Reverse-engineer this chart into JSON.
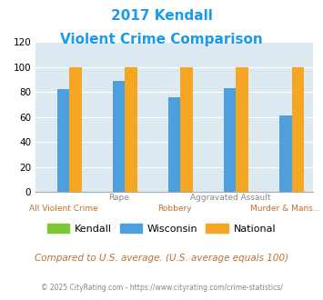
{
  "title_line1": "2017 Kendall",
  "title_line2": "Violent Crime Comparison",
  "title_color": "#1a9aee",
  "x_labels_top": [
    "",
    "Rape",
    "",
    "Aggravated Assault",
    ""
  ],
  "x_labels_bottom": [
    "All Violent Crime",
    "",
    "Robbery",
    "",
    "Murder & Mans..."
  ],
  "groups": [
    {
      "label": "All Violent Crime",
      "kendall": 0,
      "wisconsin": 82,
      "national": 100
    },
    {
      "label": "Rape",
      "kendall": 0,
      "wisconsin": 89,
      "national": 100
    },
    {
      "label": "Robbery",
      "kendall": 0,
      "wisconsin": 76,
      "national": 100
    },
    {
      "label": "Aggravated Assault",
      "kendall": 0,
      "wisconsin": 83,
      "national": 100
    },
    {
      "label": "Murder & Mans...",
      "kendall": 0,
      "wisconsin": 61,
      "national": 100
    }
  ],
  "kendall_color": "#7dc832",
  "wisconsin_color": "#4d9fde",
  "national_color": "#f5a623",
  "ylim": [
    0,
    120
  ],
  "yticks": [
    0,
    20,
    40,
    60,
    80,
    100,
    120
  ],
  "plot_bg": "#dce9f0",
  "footer_text": "Compared to U.S. average. (U.S. average equals 100)",
  "footer_color": "#c07030",
  "copyright_text": "© 2025 CityRating.com - https://www.cityrating.com/crime-statistics/",
  "copyright_color": "#888888",
  "figsize": [
    3.55,
    3.3
  ],
  "dpi": 100
}
